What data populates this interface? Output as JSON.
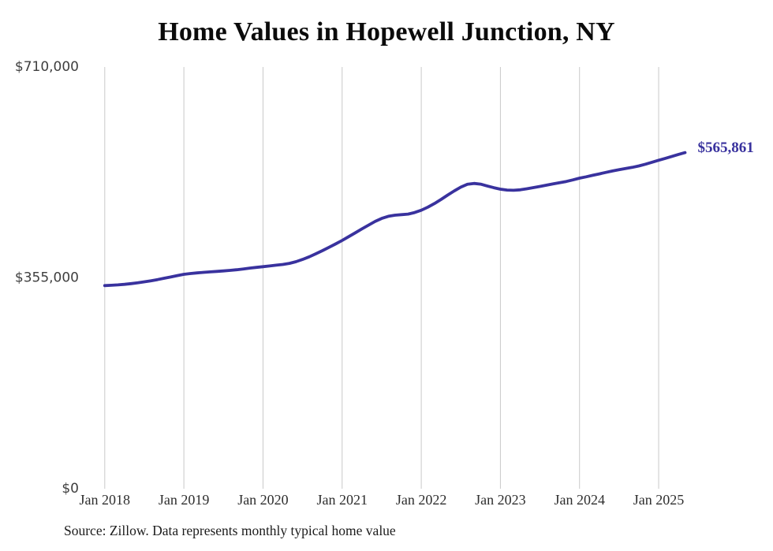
{
  "title": "Home Values in Hopewell Junction, NY",
  "source_note": "Source: Zillow. Data represents monthly typical home value",
  "colors": {
    "line": "#39329e",
    "grid": "#c9c9c9",
    "title_text": "#0b0b0b",
    "y_tick_text": "#3f3f3f",
    "x_tick_text": "#2e2e2e",
    "source_text": "#1c1c1c",
    "background": "#ffffff"
  },
  "chart_data": {
    "type": "line",
    "title": "Home Values in Hopewell Junction, NY",
    "xlabel": "",
    "ylabel": "",
    "ylim": [
      0,
      710000
    ],
    "grid": "vertical-only",
    "legend": "none",
    "y_ticks": [
      {
        "value": 0,
        "label": "$0"
      },
      {
        "value": 355000,
        "label": "$355,000"
      },
      {
        "value": 710000,
        "label": "$710,000"
      }
    ],
    "x_ticks": [
      "Jan 2018",
      "Jan 2019",
      "Jan 2020",
      "Jan 2021",
      "Jan 2022",
      "Jan 2023",
      "Jan 2024",
      "Jan 2025"
    ],
    "last_value": 565861,
    "last_value_label": "$565,861",
    "series": [
      {
        "name": "Typical home value (USD)",
        "interval": "monthly",
        "start_month": "2018-01",
        "end_month": "2025-05",
        "values": [
          342000,
          342500,
          343200,
          344100,
          345300,
          346700,
          348300,
          350100,
          352100,
          354300,
          356500,
          358800,
          361000,
          362300,
          363400,
          364300,
          365100,
          365900,
          366700,
          367600,
          368700,
          370000,
          371500,
          372700,
          373800,
          375100,
          376300,
          377600,
          379400,
          382200,
          386000,
          390500,
          395500,
          400800,
          406300,
          412100,
          418100,
          424400,
          430900,
          437400,
          443800,
          450000,
          455100,
          458600,
          460500,
          461500,
          462400,
          465000,
          468900,
          474100,
          480200,
          487100,
          494300,
          501400,
          507700,
          512500,
          514000,
          512800,
          509800,
          506800,
          504300,
          502900,
          502500,
          503300,
          504900,
          506900,
          509000,
          511100,
          513200,
          515300,
          517300,
          520000,
          522900,
          525200,
          527600,
          530100,
          532600,
          535000,
          537100,
          539100,
          541100,
          543400,
          546400,
          549700,
          553000,
          556200,
          559500,
          562800,
          565861
        ]
      }
    ]
  }
}
